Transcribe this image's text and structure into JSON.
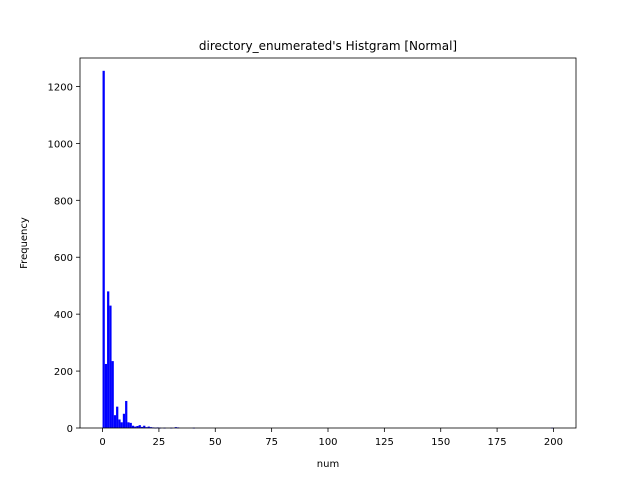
{
  "chart_data": {
    "type": "bar",
    "title": "directory_enumerated's Histgram [Normal]",
    "xlabel": "num",
    "ylabel": "Frequency",
    "xlim": [
      -10,
      210
    ],
    "ylim": [
      0,
      1300
    ],
    "xticks": [
      0,
      25,
      50,
      75,
      100,
      125,
      150,
      175,
      200
    ],
    "yticks": [
      0,
      200,
      400,
      600,
      800,
      1000,
      1200
    ],
    "bin_width": 1,
    "bar_color": "#0000ff",
    "grid": false,
    "legend": "none",
    "bins": [
      {
        "x": 0,
        "value": 1255
      },
      {
        "x": 1,
        "value": 225
      },
      {
        "x": 2,
        "value": 480
      },
      {
        "x": 3,
        "value": 430
      },
      {
        "x": 4,
        "value": 235
      },
      {
        "x": 5,
        "value": 45
      },
      {
        "x": 6,
        "value": 75
      },
      {
        "x": 7,
        "value": 30
      },
      {
        "x": 8,
        "value": 20
      },
      {
        "x": 9,
        "value": 50
      },
      {
        "x": 10,
        "value": 95
      },
      {
        "x": 11,
        "value": 20
      },
      {
        "x": 12,
        "value": 18
      },
      {
        "x": 13,
        "value": 8
      },
      {
        "x": 14,
        "value": 5
      },
      {
        "x": 15,
        "value": 7
      },
      {
        "x": 16,
        "value": 10
      },
      {
        "x": 17,
        "value": 4
      },
      {
        "x": 18,
        "value": 8
      },
      {
        "x": 19,
        "value": 3
      },
      {
        "x": 20,
        "value": 5
      },
      {
        "x": 21,
        "value": 3
      },
      {
        "x": 22,
        "value": 2
      },
      {
        "x": 23,
        "value": 1
      },
      {
        "x": 24,
        "value": 2
      },
      {
        "x": 25,
        "value": 1
      },
      {
        "x": 27,
        "value": 1
      },
      {
        "x": 30,
        "value": 1
      },
      {
        "x": 32,
        "value": 3
      },
      {
        "x": 33,
        "value": 2
      },
      {
        "x": 40,
        "value": 1
      },
      {
        "x": 199,
        "value": 1
      }
    ]
  }
}
